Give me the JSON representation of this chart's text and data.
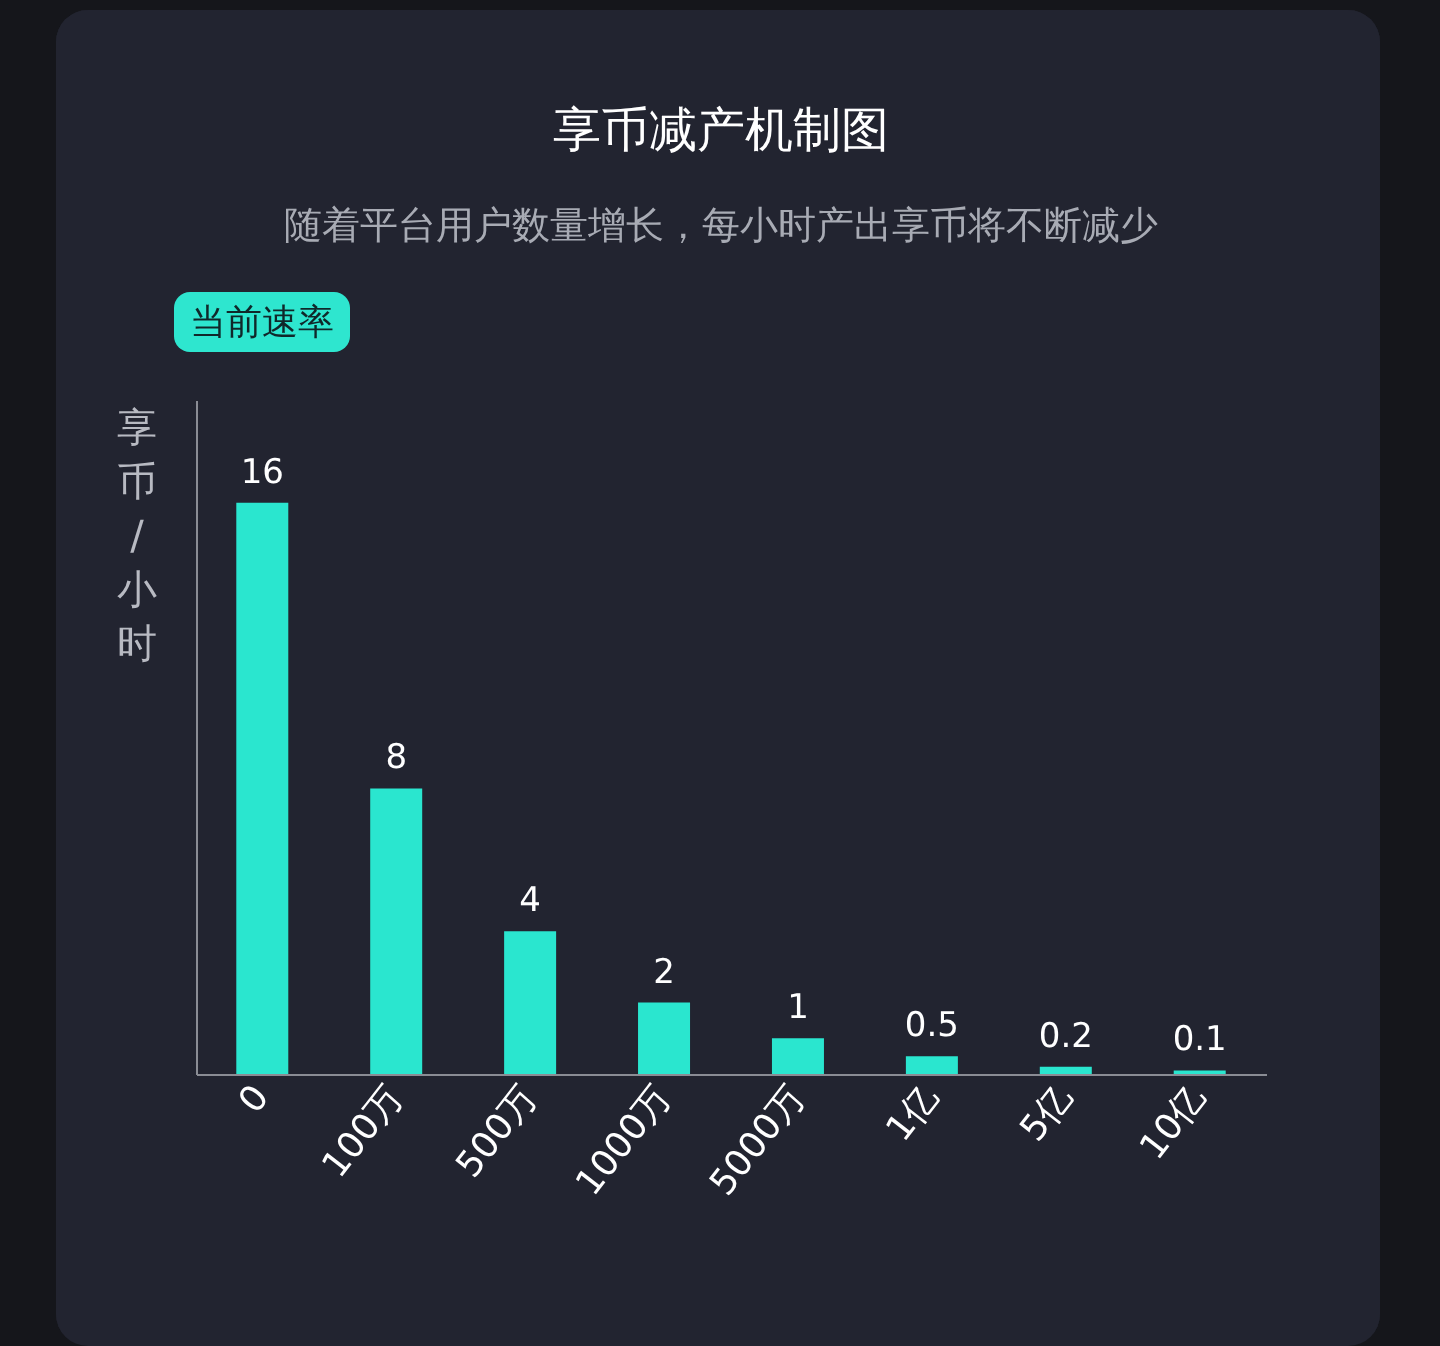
{
  "chart_data": {
    "type": "bar",
    "title": "享币减产机制图",
    "subtitle": "随着平台用户数量增长，每小时产出享币将不断减少",
    "ylabel": "享币/小时",
    "categories": [
      "0",
      "100万",
      "500万",
      "1000万",
      "5000万",
      "1亿",
      "5亿",
      "10亿"
    ],
    "values": [
      16,
      8,
      4,
      2,
      1,
      0.5,
      0.2,
      0.1
    ],
    "color": "#2ae6cf",
    "data_labels": true,
    "annotations": [
      "当前速率"
    ]
  }
}
